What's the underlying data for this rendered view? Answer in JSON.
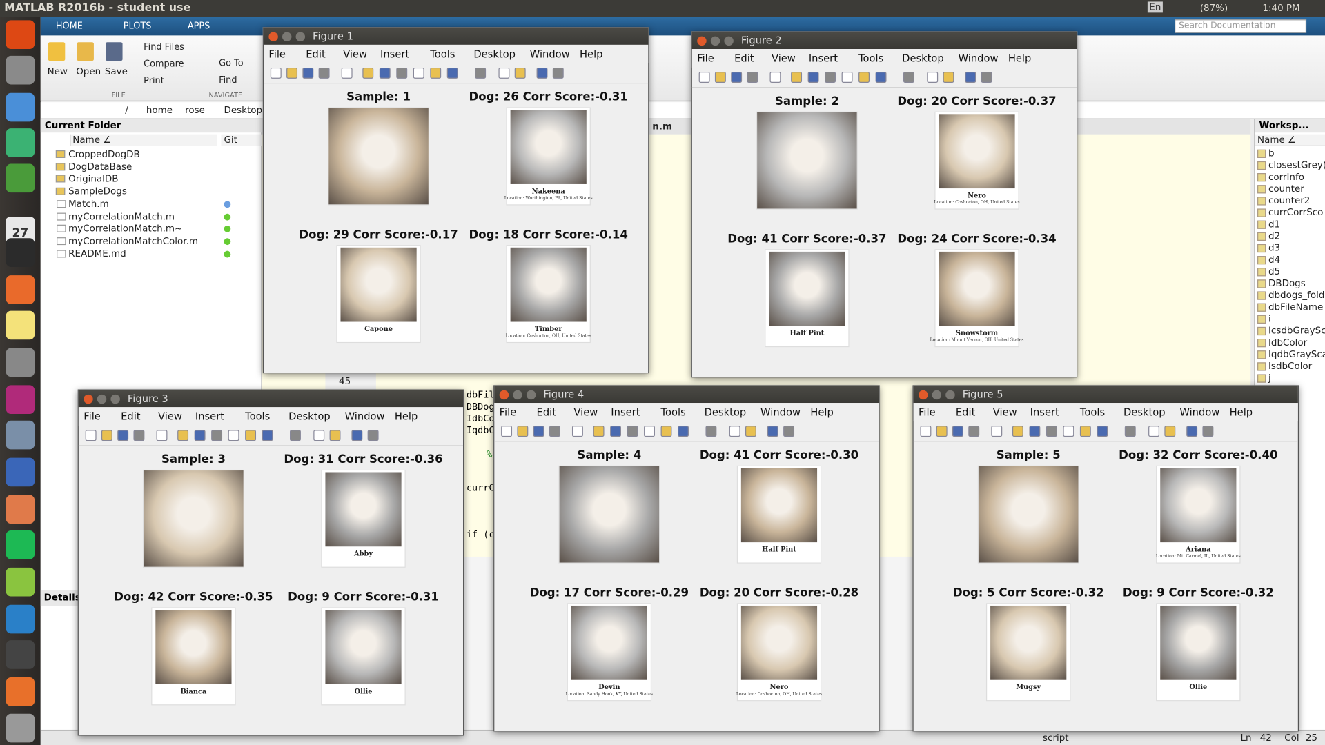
{
  "topbar": {
    "title": "MATLAB R2016b - student use",
    "lang": "En",
    "battery": "(87%)",
    "time": "1:40 PM"
  },
  "launcher": {
    "calendar": "27"
  },
  "tabs": [
    "HOME",
    "PLOTS",
    "APPS"
  ],
  "toolstrip": {
    "big_buttons": [
      "New",
      "Open",
      "Save"
    ],
    "file_items": [
      "Find Files",
      "Compare",
      "Print"
    ],
    "nav_items": [
      "Go To",
      "Find"
    ],
    "sections": [
      "FILE",
      "NAVIGATE"
    ]
  },
  "search": "Search Documentation",
  "path": [
    "/",
    "home",
    "rose",
    "Desktop"
  ],
  "folder": {
    "title": "Current Folder",
    "columns": [
      "Name ∠",
      "Git"
    ],
    "items": [
      "CroppedDogDB",
      "DogDataBase",
      "OriginalDB",
      "SampleDogs",
      "Match.m",
      "myCorrelationMatch.m",
      "myCorrelationMatch.m~",
      "myCorrelationMatchColor.m",
      "README.md"
    ]
  },
  "details": "Details",
  "editor": {
    "tab": "n.m",
    "line_number": "45",
    "snippets": [
      "dbFil",
      "DBDog",
      "IdbCo",
      "IqdbC",
      "%",
      "currC",
      "if (c"
    ]
  },
  "workspace": {
    "title": "Worksp...",
    "column": "Name ∠",
    "items": [
      "b",
      "closestGrey(",
      "corrInfo",
      "counter",
      "counter2",
      "currCorrSco",
      "d1",
      "d2",
      "d3",
      "d4",
      "d5",
      "DBDogs",
      "dbdogs_fold",
      "dbFileName",
      "i",
      "IcsdbGraySc",
      "IdbColor",
      "IqdbGraySca",
      "IsdbColor",
      "j"
    ]
  },
  "statusbar": {
    "mode": "script",
    "ln_label": "Ln",
    "ln": "42",
    "col_label": "Col",
    "col": "25"
  },
  "figure_menu": [
    "File",
    "Edit",
    "View",
    "Insert",
    "Tools",
    "Desktop",
    "Window",
    "Help"
  ],
  "figures": [
    {
      "title": "Figure 1",
      "panels": [
        {
          "title": "Sample: 1"
        },
        {
          "title": "Dog: 26 Corr Score:-0.31",
          "caption": "Nakeena",
          "location": "Location: Worthington, PA, United States"
        },
        {
          "title": "Dog: 29 Corr Score:-0.17",
          "caption": "Capone"
        },
        {
          "title": "Dog: 18 Corr Score:-0.14",
          "caption": "Timber",
          "location": "Location: Coshocton, OH, United States"
        }
      ]
    },
    {
      "title": "Figure 2",
      "panels": [
        {
          "title": "Sample: 2"
        },
        {
          "title": "Dog: 20 Corr Score:-0.37",
          "caption": "Nero",
          "location": "Location: Coshocton, OH, United States"
        },
        {
          "title": "Dog: 41 Corr Score:-0.37",
          "caption": "Half Pint"
        },
        {
          "title": "Dog: 24 Corr Score:-0.34",
          "caption": "Snowstorm",
          "location": "Location: Mount Vernon, OH, United States"
        }
      ]
    },
    {
      "title": "Figure 3",
      "panels": [
        {
          "title": "Sample: 3"
        },
        {
          "title": "Dog: 31 Corr Score:-0.36",
          "caption": "Abby"
        },
        {
          "title": "Dog: 42 Corr Score:-0.35",
          "caption": "Bianca"
        },
        {
          "title": "Dog: 9 Corr Score:-0.31",
          "caption": "Ollie"
        }
      ]
    },
    {
      "title": "Figure 4",
      "panels": [
        {
          "title": "Sample: 4"
        },
        {
          "title": "Dog: 41 Corr Score:-0.30",
          "caption": "Half Pint"
        },
        {
          "title": "Dog: 17 Corr Score:-0.29",
          "caption": "Devin",
          "location": "Location: Sandy Hook, KY, United States"
        },
        {
          "title": "Dog: 20 Corr Score:-0.28",
          "caption": "Nero",
          "location": "Location: Coshocton, OH, United States"
        }
      ]
    },
    {
      "title": "Figure 5",
      "panels": [
        {
          "title": "Sample: 5"
        },
        {
          "title": "Dog: 32 Corr Score:-0.40",
          "caption": "Ariana",
          "location": "Location: Mt. Carmel, IL, United States"
        },
        {
          "title": "Dog: 5 Corr Score:-0.32",
          "caption": "Mugsy"
        },
        {
          "title": "Dog: 9 Corr Score:-0.32",
          "caption": "Ollie"
        }
      ]
    }
  ]
}
